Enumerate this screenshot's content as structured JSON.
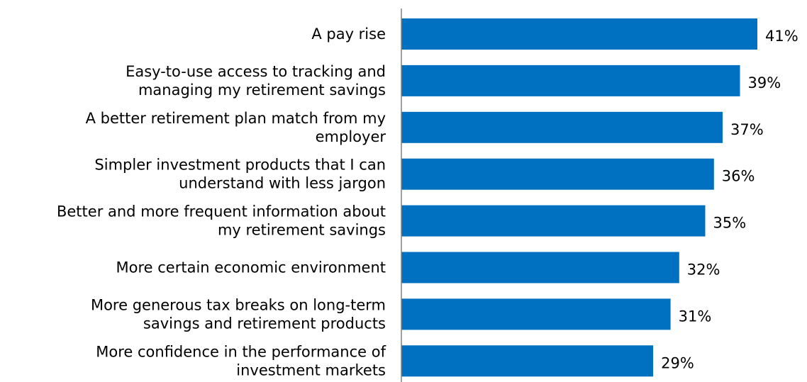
{
  "chart_data": {
    "type": "bar",
    "orientation": "horizontal",
    "title": "",
    "xlabel": "",
    "ylabel": "",
    "categories": [
      [
        "A pay rise"
      ],
      [
        "Easy-to-use access to tracking and",
        "managing my retirement savings"
      ],
      [
        "A better retirement plan match from my",
        "employer"
      ],
      [
        "Simpler investment products that I can",
        "understand with less jargon"
      ],
      [
        "Better and more frequent information about",
        "my retirement savings"
      ],
      [
        "More certain economic environment"
      ],
      [
        "More generous tax breaks on long-term",
        "savings and retirement products"
      ],
      [
        "More confidence in the performance of",
        "investment markets"
      ]
    ],
    "values": [
      41,
      39,
      37,
      36,
      35,
      32,
      31,
      29
    ],
    "data_labels": [
      "41%",
      "39%",
      "37%",
      "36%",
      "35%",
      "32%",
      "31%",
      "29%"
    ],
    "xlim": [
      0,
      41
    ],
    "grid": false,
    "legend": "none",
    "colors": {
      "bar": "#0070C0",
      "axis": "#808080",
      "text": "#000000"
    }
  }
}
